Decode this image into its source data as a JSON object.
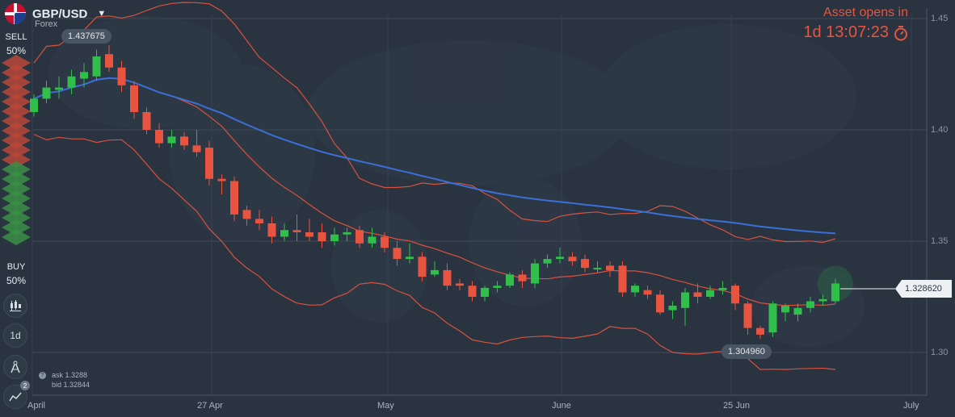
{
  "header": {
    "pair": "GBP/USD",
    "market": "Forex"
  },
  "asset_open": {
    "label": "Asset opens in",
    "timer": "1d 13:07:23"
  },
  "sidebar": {
    "sell_label": "SELL",
    "sell_pct": "50%",
    "buy_label": "BUY",
    "buy_pct": "50%",
    "timeframe": "1d",
    "indicator_count": "2"
  },
  "quote": {
    "ask": "ask 1.3288",
    "bid": "bid 1.32844"
  },
  "price_labels": {
    "high": "1.437675",
    "low": "1.304960",
    "current": "1.328620"
  },
  "y_axis": [
    "1.45",
    "1.40",
    "1.35",
    "1.30"
  ],
  "x_axis": [
    "April",
    "27 Apr",
    "May",
    "June",
    "25 Jun",
    "July"
  ],
  "colors": {
    "up": "#2fbf4a",
    "down": "#e8543f",
    "ma": "#3b6fd8",
    "band": "#d9513d",
    "bg": "#2a3441"
  },
  "chart_data": {
    "type": "candlestick",
    "ylim": [
      1.3,
      1.45
    ],
    "candles": [
      [
        1.408,
        1.414,
        1.416,
        1.406
      ],
      [
        1.414,
        1.419,
        1.422,
        1.412
      ],
      [
        1.418,
        1.419,
        1.424,
        1.414
      ],
      [
        1.419,
        1.424,
        1.427,
        1.416
      ],
      [
        1.423,
        1.426,
        1.43,
        1.419
      ],
      [
        1.424,
        1.433,
        1.436,
        1.422
      ],
      [
        1.434,
        1.428,
        1.438,
        1.426
      ],
      [
        1.428,
        1.42,
        1.431,
        1.417
      ],
      [
        1.42,
        1.408,
        1.422,
        1.405
      ],
      [
        1.408,
        1.4,
        1.41,
        1.398
      ],
      [
        1.4,
        1.394,
        1.403,
        1.392
      ],
      [
        1.394,
        1.397,
        1.4,
        1.392
      ],
      [
        1.397,
        1.393,
        1.399,
        1.391
      ],
      [
        1.393,
        1.39,
        1.4,
        1.388
      ],
      [
        1.392,
        1.378,
        1.395,
        1.375
      ],
      [
        1.378,
        1.377,
        1.38,
        1.371
      ],
      [
        1.377,
        1.362,
        1.379,
        1.359
      ],
      [
        1.364,
        1.36,
        1.366,
        1.357
      ],
      [
        1.36,
        1.358,
        1.364,
        1.355
      ],
      [
        1.358,
        1.352,
        1.361,
        1.349
      ],
      [
        1.352,
        1.355,
        1.358,
        1.35
      ],
      [
        1.355,
        1.354,
        1.362,
        1.35
      ],
      [
        1.354,
        1.352,
        1.36,
        1.35
      ],
      [
        1.354,
        1.35,
        1.358,
        1.347
      ],
      [
        1.35,
        1.353,
        1.356,
        1.348
      ],
      [
        1.353,
        1.354,
        1.356,
        1.35
      ],
      [
        1.355,
        1.349,
        1.357,
        1.347
      ],
      [
        1.349,
        1.352,
        1.356,
        1.347
      ],
      [
        1.352,
        1.347,
        1.354,
        1.345
      ],
      [
        1.347,
        1.342,
        1.35,
        1.339
      ],
      [
        1.342,
        1.343,
        1.349,
        1.34
      ],
      [
        1.343,
        1.334,
        1.345,
        1.332
      ],
      [
        1.335,
        1.337,
        1.341,
        1.334
      ],
      [
        1.337,
        1.33,
        1.34,
        1.328
      ],
      [
        1.331,
        1.33,
        1.333,
        1.328
      ],
      [
        1.33,
        1.325,
        1.332,
        1.323
      ],
      [
        1.325,
        1.329,
        1.33,
        1.323
      ],
      [
        1.329,
        1.33,
        1.332,
        1.327
      ],
      [
        1.33,
        1.335,
        1.336,
        1.329
      ],
      [
        1.335,
        1.332,
        1.337,
        1.329
      ],
      [
        1.331,
        1.34,
        1.342,
        1.329
      ],
      [
        1.34,
        1.342,
        1.344,
        1.338
      ],
      [
        1.342,
        1.343,
        1.347,
        1.34
      ],
      [
        1.343,
        1.341,
        1.345,
        1.339
      ],
      [
        1.342,
        1.338,
        1.344,
        1.336
      ],
      [
        1.338,
        1.338,
        1.341,
        1.336
      ],
      [
        1.339,
        1.337,
        1.341,
        1.334
      ],
      [
        1.339,
        1.327,
        1.341,
        1.325
      ],
      [
        1.327,
        1.33,
        1.331,
        1.325
      ],
      [
        1.328,
        1.326,
        1.33,
        1.324
      ],
      [
        1.326,
        1.318,
        1.328,
        1.317
      ],
      [
        1.319,
        1.321,
        1.323,
        1.315
      ],
      [
        1.32,
        1.327,
        1.329,
        1.312
      ],
      [
        1.327,
        1.325,
        1.331,
        1.322
      ],
      [
        1.325,
        1.328,
        1.33,
        1.324
      ],
      [
        1.328,
        1.329,
        1.332,
        1.326
      ],
      [
        1.33,
        1.322,
        1.331,
        1.319
      ],
      [
        1.322,
        1.311,
        1.323,
        1.308
      ],
      [
        1.311,
        1.308,
        1.312,
        1.306
      ],
      [
        1.309,
        1.322,
        1.323,
        1.307
      ],
      [
        1.318,
        1.321,
        1.322,
        1.314
      ],
      [
        1.317,
        1.32,
        1.322,
        1.314
      ],
      [
        1.32,
        1.323,
        1.325,
        1.318
      ],
      [
        1.323,
        1.324,
        1.326,
        1.321
      ],
      [
        1.323,
        1.331,
        1.333,
        1.322
      ]
    ]
  }
}
